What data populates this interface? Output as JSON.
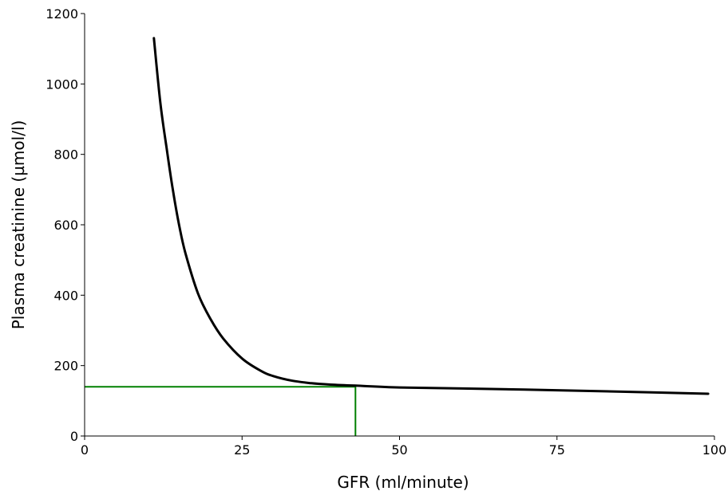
{
  "chart_data": {
    "type": "line",
    "title": "",
    "xlabel": "GFR (ml/minute)",
    "ylabel": "Plasma creatinine (µmol/l)",
    "xlim": [
      0,
      100
    ],
    "ylim": [
      0,
      1200
    ],
    "x_ticks": [
      0,
      25,
      50,
      75,
      100
    ],
    "y_ticks": [
      0,
      200,
      400,
      600,
      800,
      1000,
      1200
    ],
    "grid": false,
    "series": [
      {
        "color": "#000000",
        "x": [
          11,
          12,
          13,
          14,
          15,
          16,
          18,
          20,
          22,
          25,
          28,
          30,
          33,
          36,
          39,
          43,
          50,
          60,
          75,
          90,
          99
        ],
        "y": [
          1130,
          950,
          820,
          700,
          600,
          520,
          405,
          332,
          277,
          220,
          185,
          170,
          157,
          150,
          146,
          143,
          138,
          135,
          130,
          124,
          120
        ]
      }
    ],
    "reference_lines": [
      {
        "color": "#008000",
        "x": [
          0,
          43,
          43
        ],
        "y": [
          140,
          140,
          0
        ]
      }
    ]
  }
}
